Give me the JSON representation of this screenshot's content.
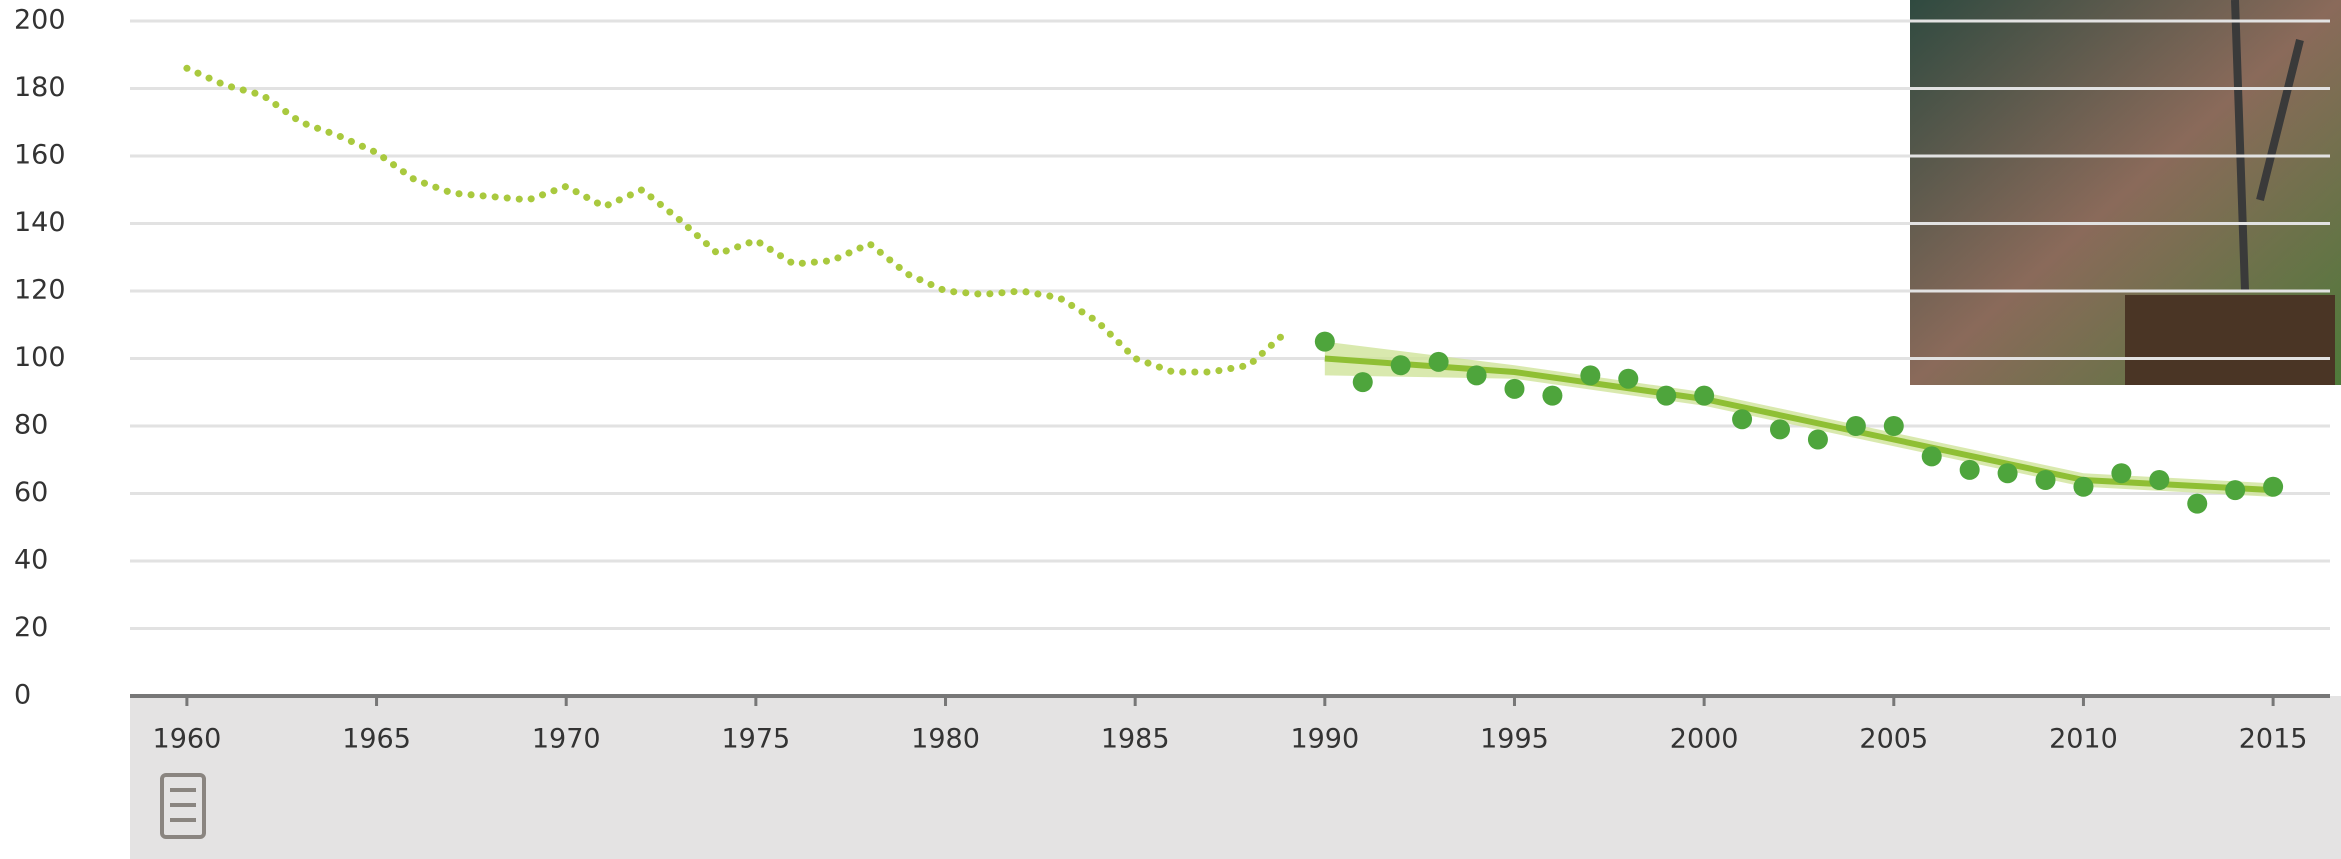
{
  "chart_data": {
    "type": "line",
    "xlim": [
      1958.5,
      2016.5
    ],
    "ylim": [
      0,
      200
    ],
    "xticks": [
      1960,
      1965,
      1970,
      1975,
      1980,
      1985,
      1990,
      1995,
      2000,
      2005,
      2010,
      2015
    ],
    "yticks": [
      0,
      20,
      40,
      60,
      80,
      100,
      120,
      140,
      160,
      180,
      200
    ],
    "grid": true,
    "series": [
      {
        "type": "dotted",
        "color": "#a9c93e",
        "x": [
          1960,
          1961,
          1962,
          1963,
          1964,
          1965,
          1966,
          1967,
          1968,
          1969,
          1970,
          1971,
          1972,
          1973,
          1974,
          1975,
          1976,
          1977,
          1978,
          1979,
          1980,
          1981,
          1982,
          1983,
          1984,
          1985,
          1986,
          1987,
          1988,
          1989
        ],
        "values": [
          186,
          181,
          178,
          170,
          166,
          161,
          153,
          149,
          148,
          147,
          151,
          145,
          150,
          141,
          131,
          135,
          128,
          129,
          134,
          125,
          120,
          119,
          120,
          118,
          111,
          100,
          96,
          96,
          98,
          108
        ]
      },
      {
        "type": "scatter",
        "color": "#4ea53c",
        "x": [
          1990,
          1991,
          1992,
          1993,
          1994,
          1995,
          1996,
          1997,
          1998,
          1999,
          2000,
          2001,
          2002,
          2003,
          2004,
          2005,
          2006,
          2007,
          2008,
          2009,
          2010,
          2011,
          2012,
          2013,
          2014,
          2015
        ],
        "values": [
          105,
          93,
          98,
          99,
          95,
          91,
          89,
          95,
          94,
          89,
          89,
          82,
          79,
          76,
          80,
          80,
          71,
          67,
          66,
          64,
          62,
          66,
          64,
          57,
          61,
          62
        ]
      },
      {
        "type": "trend",
        "color": "#8fbf34",
        "band_color": "#cfe39a",
        "x": [
          1990,
          1995,
          2000,
          2005,
          2010,
          2015
        ],
        "values": [
          100,
          96,
          88,
          76,
          64,
          61
        ],
        "upper": [
          105,
          98,
          90,
          78,
          66,
          63
        ],
        "lower": [
          95,
          94,
          86,
          74,
          62,
          59
        ]
      }
    ]
  }
}
